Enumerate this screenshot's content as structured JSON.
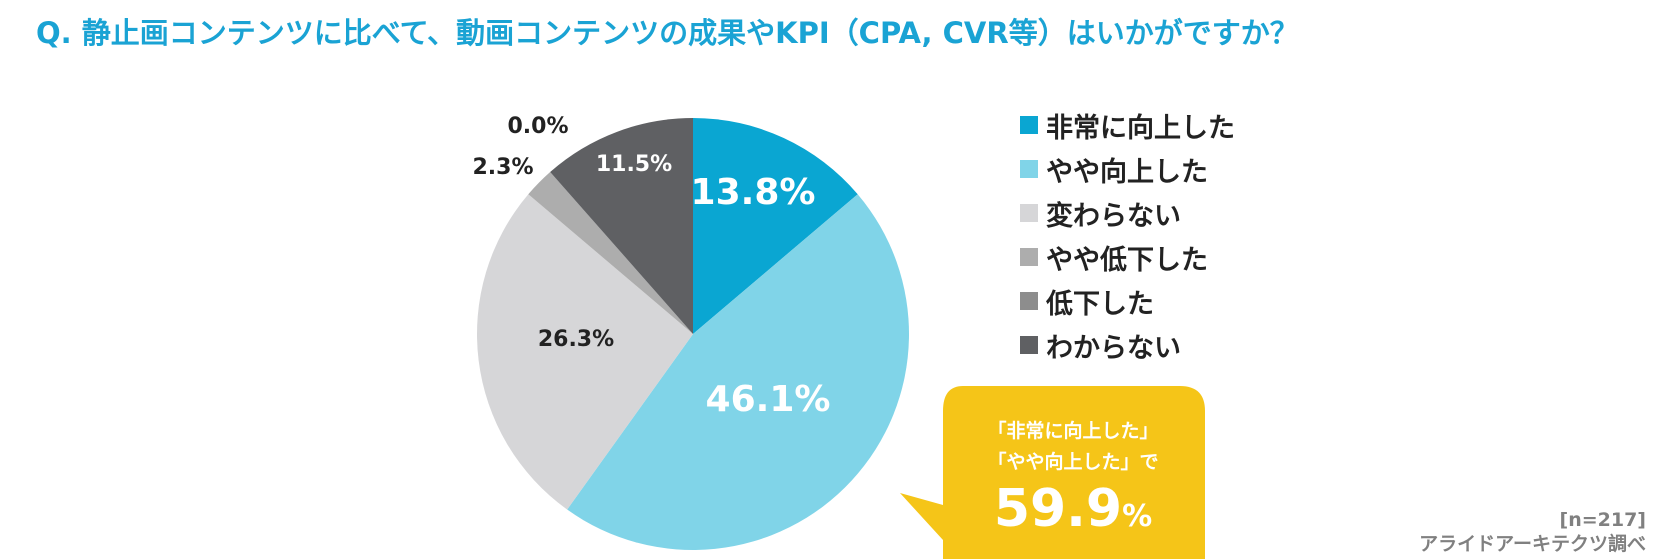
{
  "title": "Q. 静止画コンテンツに比べて、動画コンテンツの成果やKPI（CPA, CVR等）はいかがですか？",
  "chart_data": {
    "type": "pie",
    "slices": [
      {
        "label": "非常に向上した",
        "value": 13.8,
        "value_label": "13.8%",
        "color": "#0aa6d2",
        "label_color": "#ffffff"
      },
      {
        "label": "やや向上した",
        "value": 46.1,
        "value_label": "46.1%",
        "color": "#80d4e8",
        "label_color": "#ffffff"
      },
      {
        "label": "変わらない",
        "value": 26.3,
        "value_label": "26.3%",
        "color": "#d6d6d8",
        "label_color": "#222222"
      },
      {
        "label": "やや低下した",
        "value": 2.3,
        "value_label": "2.3%",
        "color": "#adadad",
        "label_color": "#222222"
      },
      {
        "label": "低下した",
        "value": 0.0,
        "value_label": "0.0%",
        "color": "#8d8d8d",
        "label_color": "#222222"
      },
      {
        "label": "わからない",
        "value": 11.5,
        "value_label": "11.5%",
        "color": "#5f6063",
        "label_color": "#ffffff"
      }
    ],
    "legend_position": "right"
  },
  "callout": {
    "line1": "「非常に向上した」",
    "line2": "「やや向上した」で",
    "value": "59.9",
    "unit": "%",
    "color": "#f5c518"
  },
  "footer": {
    "sample": "[n=217]",
    "source": "アライドアーキテクツ調べ"
  }
}
